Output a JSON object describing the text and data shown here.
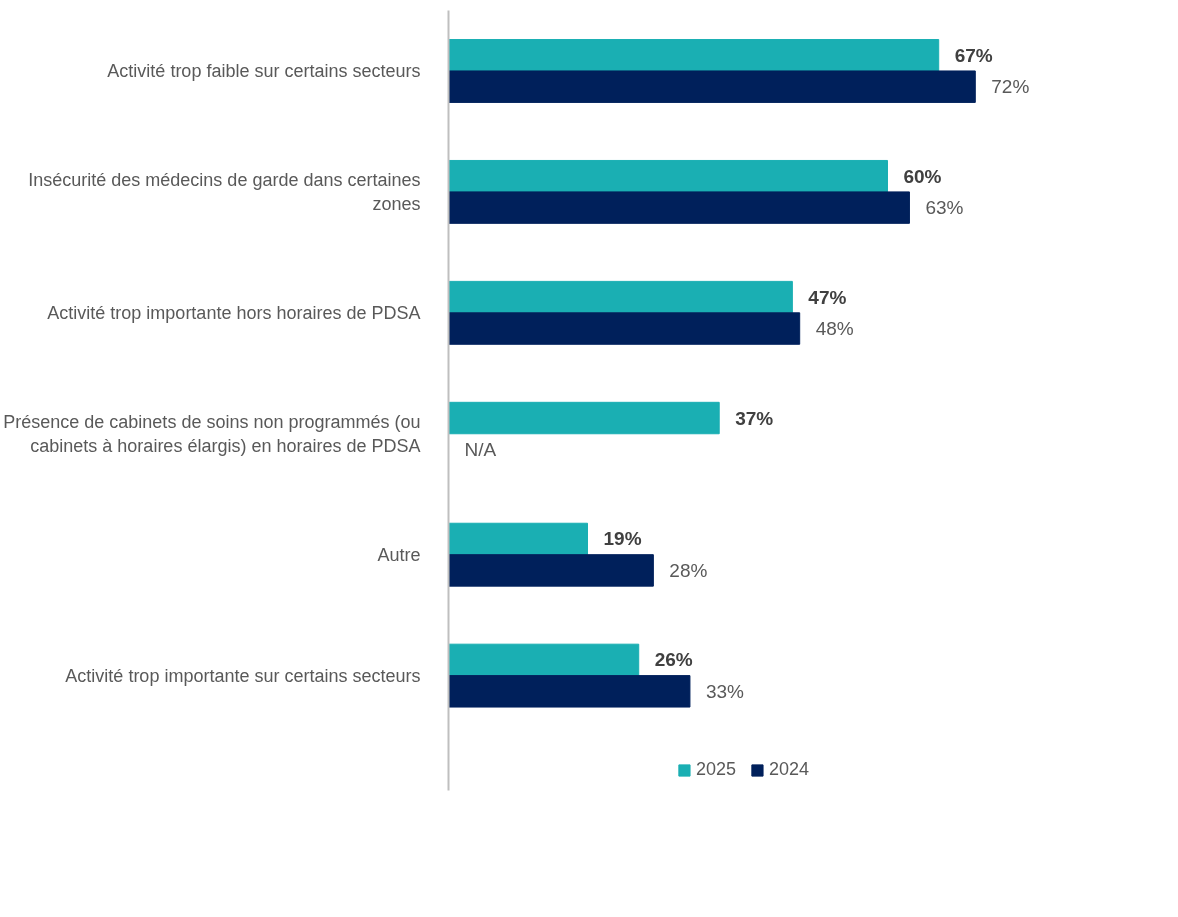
{
  "chart_data": {
    "type": "bar",
    "orientation": "horizontal",
    "categories": [
      "Activité trop faible sur certains secteurs",
      "Insécurité des médecins de garde dans certaines zones",
      "Activité trop importante hors horaires de PDSA",
      "Présence de cabinets de soins non programmés (ou cabinets à horaires élargis) en horaires de PDSA",
      "Autre",
      "Activité trop importante sur certains secteurs"
    ],
    "series": [
      {
        "name": "2025",
        "color": "#1aafb3",
        "values": [
          67,
          60,
          47,
          37,
          19,
          26
        ]
      },
      {
        "name": "2024",
        "color": "#00205b",
        "values": [
          72,
          63,
          48,
          null,
          28,
          33
        ],
        "value_labels": [
          "72%",
          "63%",
          "48%",
          "N/A",
          "28%",
          "33%"
        ]
      }
    ],
    "value_labels": [
      "67%",
      "60%",
      "47%",
      "37%",
      "19%",
      "26%"
    ],
    "tick_labels": "y",
    "grid": false,
    "legend": "bottom"
  }
}
